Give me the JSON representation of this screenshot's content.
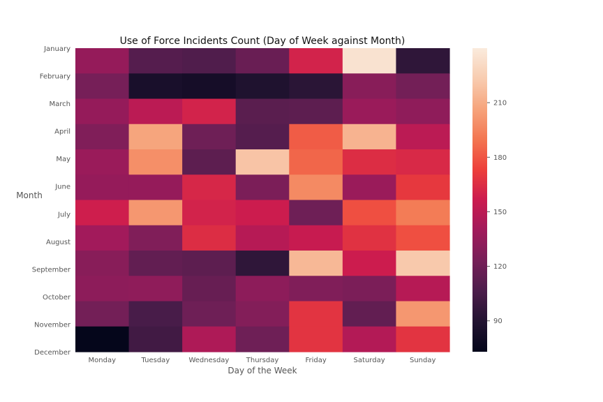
{
  "chart_data": {
    "type": "heatmap",
    "title": "Use of Force Incidents Count (Day of Week against Month)",
    "xlabel": "Day of the Week",
    "ylabel": "Month",
    "columns": [
      "Monday",
      "Tuesday",
      "Wednesday",
      "Thursday",
      "Friday",
      "Saturday",
      "Sunday"
    ],
    "rows": [
      "January",
      "February",
      "March",
      "April",
      "May",
      "June",
      "July",
      "August",
      "September",
      "October",
      "November",
      "December"
    ],
    "values": [
      [
        135,
        110,
        108,
        118,
        160,
        235,
        95
      ],
      [
        123,
        85,
        83,
        88,
        93,
        130,
        122
      ],
      [
        135,
        150,
        160,
        112,
        113,
        137,
        133
      ],
      [
        127,
        207,
        120,
        110,
        182,
        213,
        150
      ],
      [
        137,
        199,
        113,
        220,
        185,
        165,
        163
      ],
      [
        135,
        135,
        162,
        125,
        197,
        137,
        170
      ],
      [
        158,
        202,
        160,
        157,
        120,
        178,
        192
      ],
      [
        140,
        127,
        165,
        148,
        155,
        167,
        178
      ],
      [
        130,
        115,
        113,
        95,
        215,
        157,
        222
      ],
      [
        132,
        133,
        117,
        132,
        127,
        125,
        148
      ],
      [
        122,
        105,
        120,
        128,
        168,
        115,
        202
      ],
      [
        74,
        102,
        145,
        120,
        168,
        147,
        168
      ]
    ],
    "colorbar": {
      "vmin": 73,
      "vmax": 240,
      "ticks": [
        90,
        120,
        150,
        180,
        210
      ]
    },
    "colormap": [
      "#03051a",
      "#221331",
      "#4c1d4b",
      "#761f58",
      "#a11a5b",
      "#cb1b4f",
      "#ed3f3a",
      "#f37651",
      "#f6a47c",
      "#f8ccb0",
      "#faebdd"
    ],
    "grid": false,
    "legend": "none"
  }
}
